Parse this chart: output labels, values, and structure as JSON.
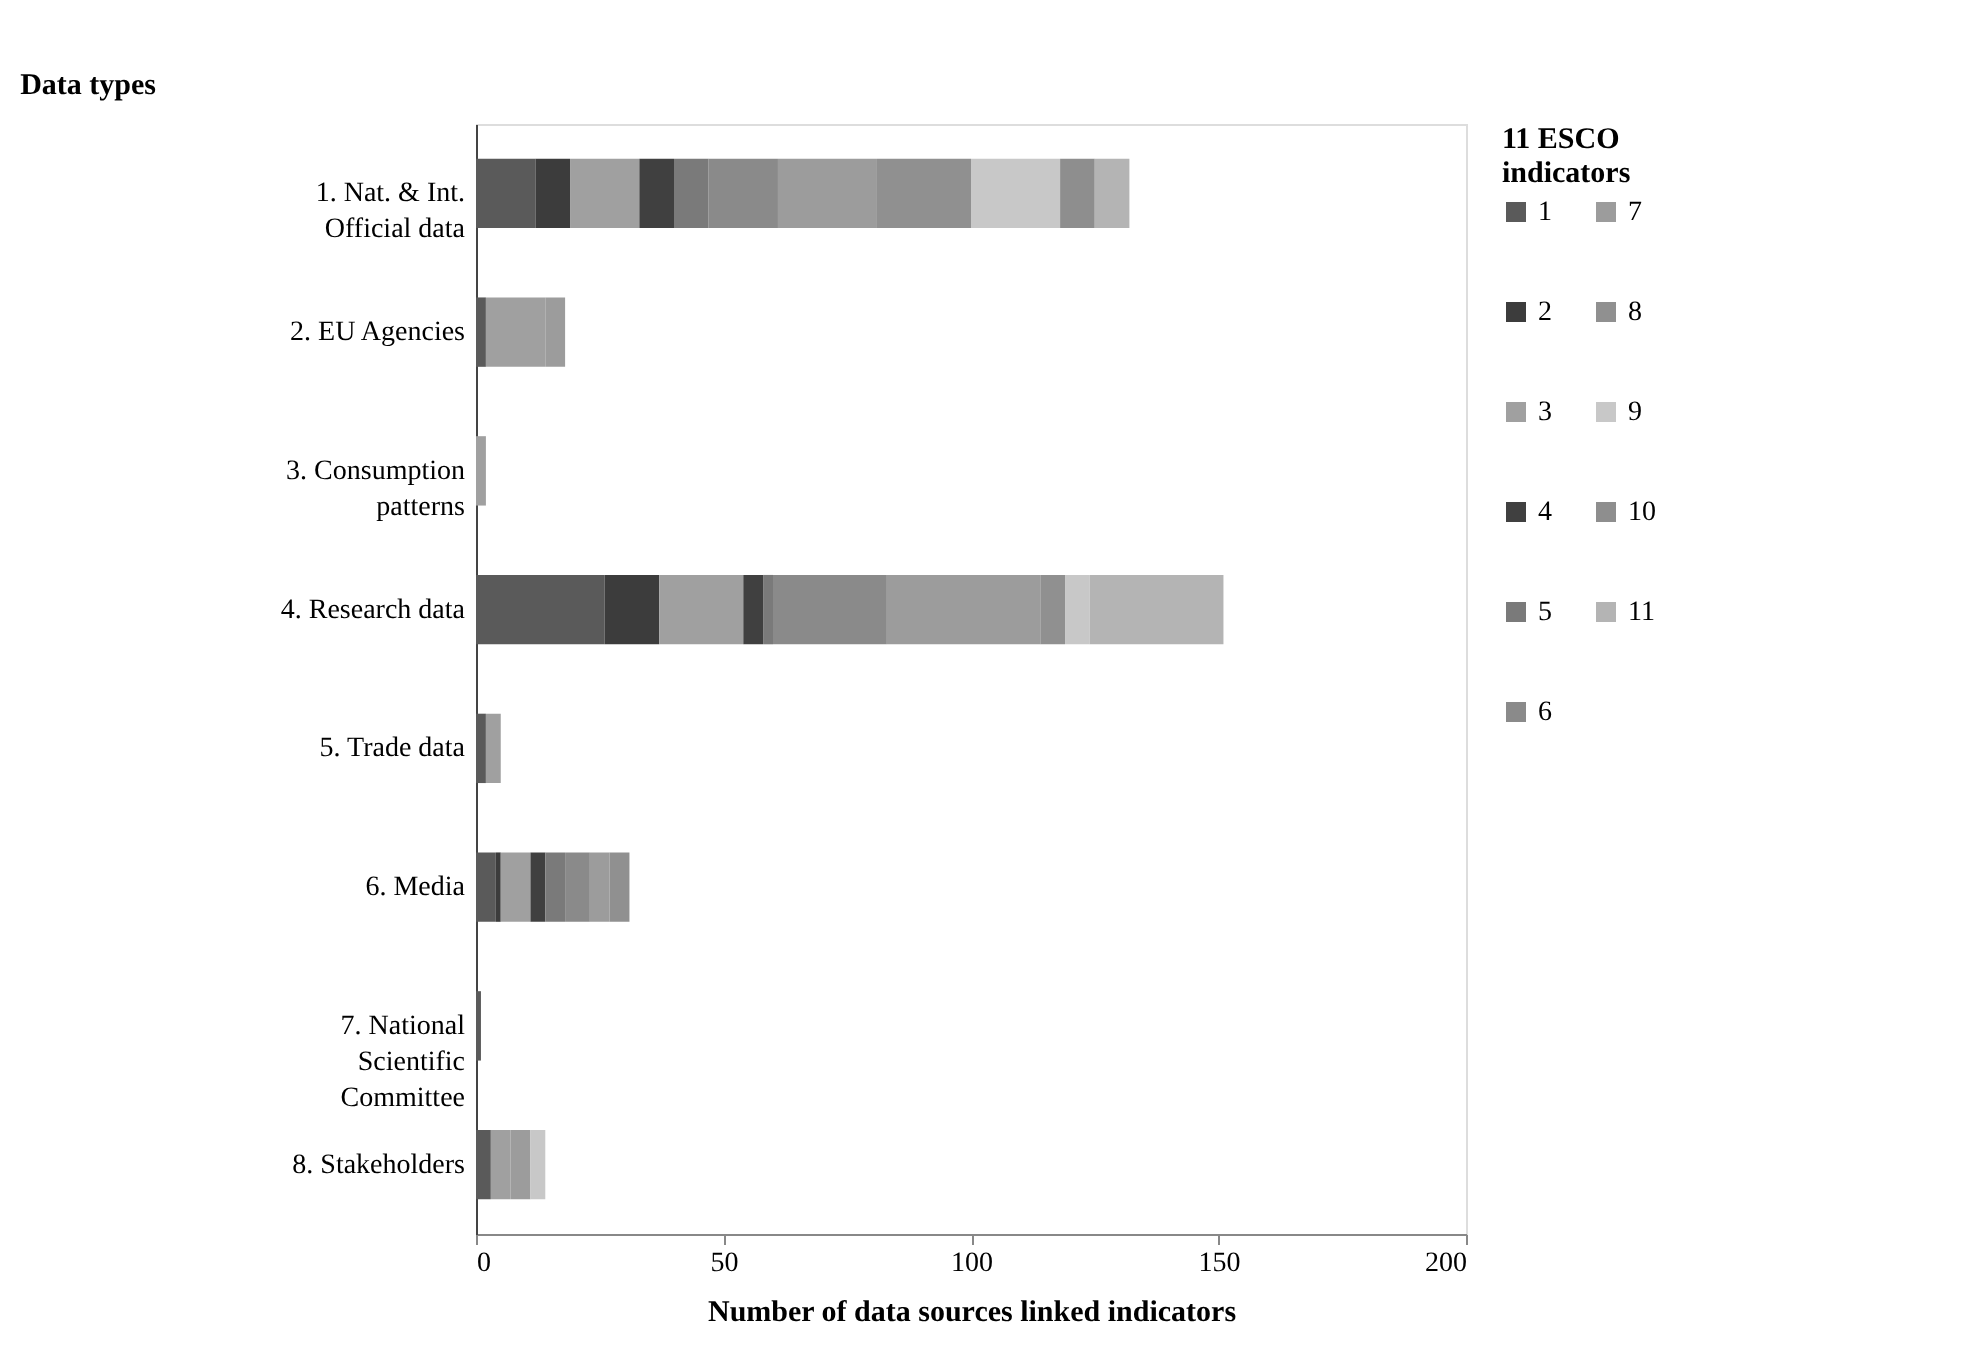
{
  "chart_data": {
    "type": "bar",
    "orientation": "horizontal",
    "stacked": true,
    "ylabel": "Data types",
    "xlabel": "Number of data sources linked indicators",
    "legend_title": "11 ESCO indicators",
    "legend": "right",
    "grid": false,
    "categories": [
      "1. Nat. & Int. Official data",
      "2. EU Agencies",
      "3. Consumption patterns",
      "4. Research data",
      "5. Trade data",
      "6. Media",
      "7. National Scientific Committee",
      "8. Stakeholders"
    ],
    "xlim": [
      0,
      200
    ],
    "xticks": [
      0,
      50,
      100,
      150,
      200
    ],
    "series": [
      {
        "name": "1",
        "color": "#5a5a5a",
        "values": [
          12,
          2,
          null,
          26,
          2,
          4,
          1,
          3
        ]
      },
      {
        "name": "2",
        "color": "#3c3c3c",
        "values": [
          7,
          null,
          null,
          11,
          null,
          1,
          null,
          null
        ]
      },
      {
        "name": "3",
        "color": "#a0a0a0",
        "values": [
          14,
          12,
          2,
          17,
          3,
          6,
          null,
          4
        ]
      },
      {
        "name": "4",
        "color": "#404040",
        "values": [
          7,
          null,
          null,
          4,
          null,
          3,
          null,
          null
        ]
      },
      {
        "name": "5",
        "color": "#7a7a7a",
        "values": [
          7,
          null,
          null,
          2,
          null,
          4,
          null,
          null
        ]
      },
      {
        "name": "6",
        "color": "#8a8a8a",
        "values": [
          14,
          null,
          null,
          23,
          null,
          5,
          null,
          null
        ]
      },
      {
        "name": "7",
        "color": "#9c9c9c",
        "values": [
          20,
          4,
          null,
          31,
          null,
          4,
          null,
          4
        ]
      },
      {
        "name": "8",
        "color": "#909090",
        "values": [
          19,
          null,
          null,
          5,
          null,
          4,
          null,
          null
        ]
      },
      {
        "name": "9",
        "color": "#c8c8c8",
        "values": [
          18,
          null,
          null,
          5,
          null,
          null,
          null,
          3
        ]
      },
      {
        "name": "10",
        "color": "#8e8e8e",
        "values": [
          7,
          null,
          null,
          null,
          null,
          null,
          null,
          null
        ]
      },
      {
        "name": "11",
        "color": "#b4b4b4",
        "values": [
          7,
          null,
          null,
          27,
          null,
          null,
          null,
          null
        ]
      }
    ]
  }
}
